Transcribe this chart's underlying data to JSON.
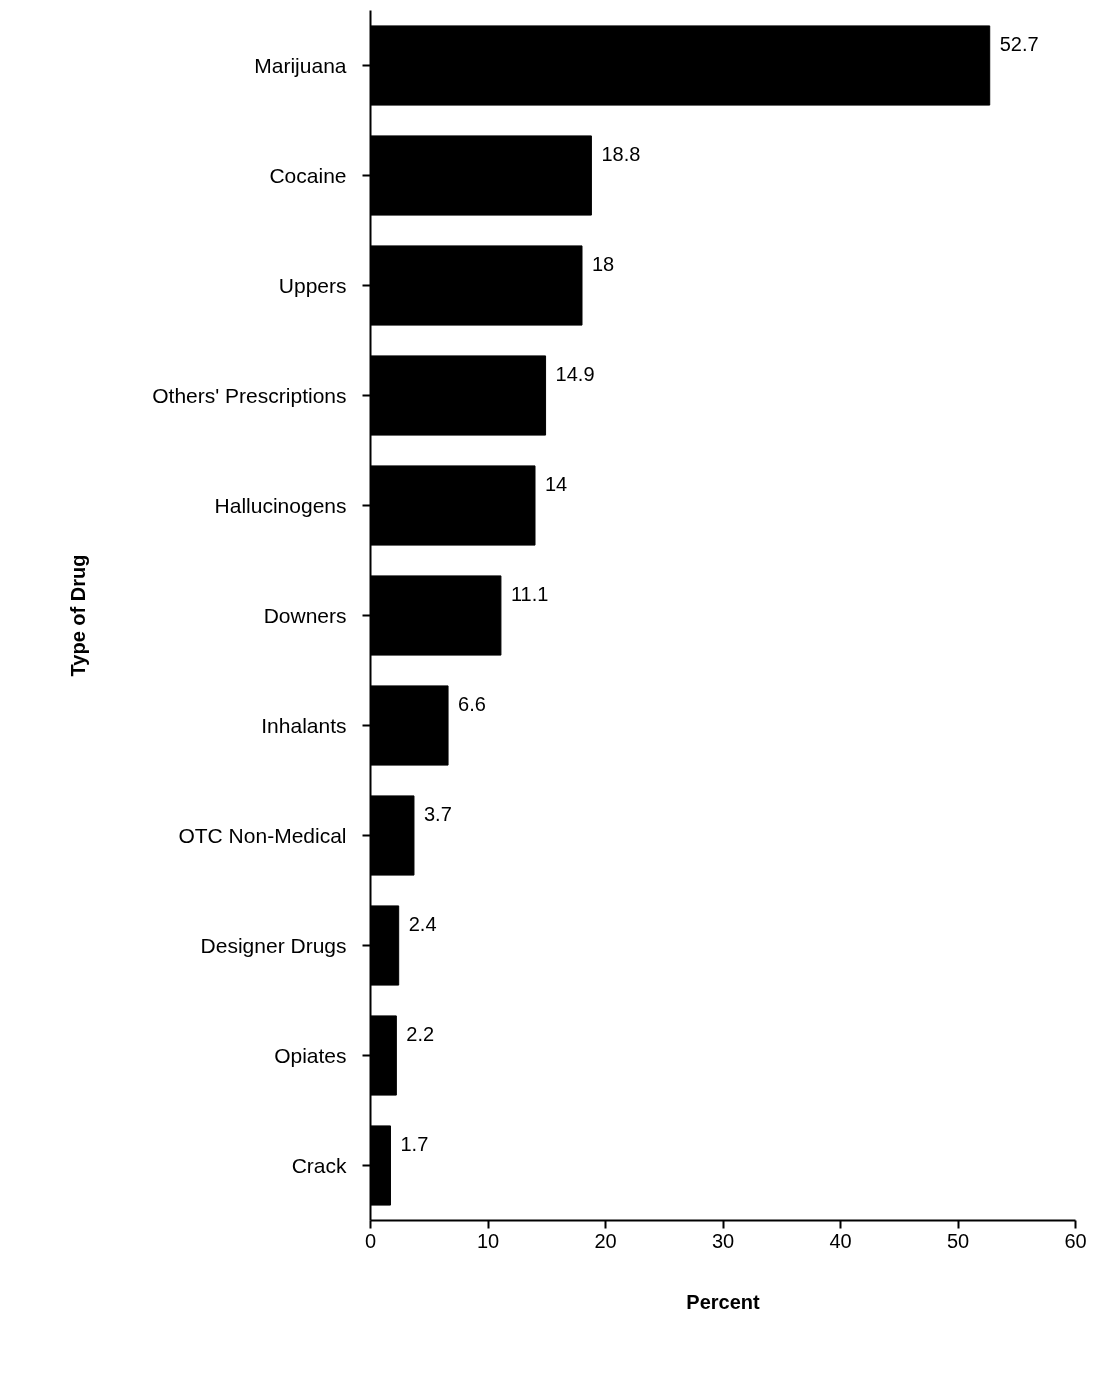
{
  "chart_data": {
    "type": "bar",
    "orientation": "horizontal",
    "xlabel": "Percent",
    "ylabel": "Type of Drug",
    "categories": [
      "Marijuana",
      "Cocaine",
      "Uppers",
      "Others' Prescriptions",
      "Hallucinogens",
      "Downers",
      "Inhalants",
      "OTC Non-Medical",
      "Designer Drugs",
      "Opiates",
      "Crack"
    ],
    "values": [
      52.7,
      18.8,
      18,
      14.9,
      14,
      11.1,
      6.6,
      3.7,
      2.4,
      2.2,
      1.7
    ],
    "color": "#000000",
    "xlim": [
      0,
      60
    ],
    "xticks": [
      0,
      10,
      20,
      30,
      40,
      50,
      60
    ],
    "data_labels": true,
    "grid": false
  }
}
